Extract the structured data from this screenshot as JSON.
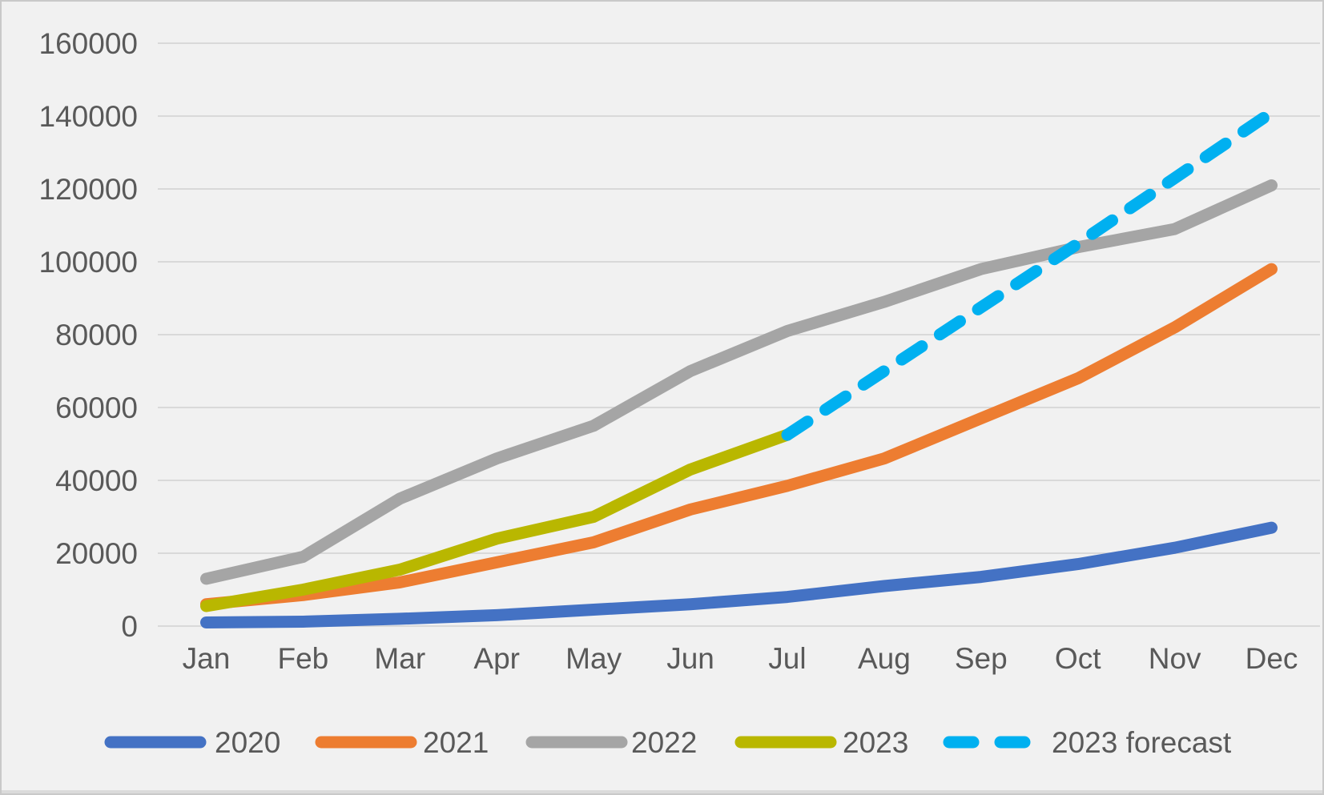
{
  "ui": {
    "background_color": "#f1f1f1",
    "frame_border_color": "#c9c9c9",
    "bottom_strip_color": "#dbdbdb",
    "gridline_color": "#d9d9d9",
    "axis_text_color": "#595959"
  },
  "chart_data": {
    "type": "line",
    "title": "",
    "xlabel": "",
    "ylabel": "",
    "grid": true,
    "legend_position": "bottom",
    "categories": [
      "Jan",
      "Feb",
      "Mar",
      "Apr",
      "May",
      "Jun",
      "Jul",
      "Aug",
      "Sep",
      "Oct",
      "Nov",
      "Dec"
    ],
    "y_axis": {
      "min": 0,
      "max": 160000,
      "step": 20000,
      "tick_labels": [
        "0",
        "20000",
        "40000",
        "60000",
        "80000",
        "100000",
        "120000",
        "140000",
        "160000"
      ]
    },
    "series": [
      {
        "name": "2020",
        "color": "#4472C4",
        "line_style": "solid",
        "values": [
          1000,
          1200,
          2000,
          3000,
          4500,
          6000,
          8000,
          11000,
          13500,
          17000,
          21500,
          27000
        ]
      },
      {
        "name": "2021",
        "color": "#ED7D31",
        "line_style": "solid",
        "values": [
          6000,
          8500,
          12000,
          17500,
          23000,
          32000,
          38500,
          46000,
          57000,
          68000,
          82000,
          98000
        ]
      },
      {
        "name": "2022",
        "color": "#A5A5A5",
        "line_style": "solid",
        "values": [
          13000,
          19000,
          35000,
          46000,
          55000,
          70000,
          81000,
          89000,
          98000,
          104000,
          109000,
          121000
        ]
      },
      {
        "name": "2023",
        "color": "#B9B700",
        "line_style": "solid",
        "values": [
          5500,
          10000,
          15500,
          24000,
          30000,
          43000,
          52500,
          null,
          null,
          null,
          null,
          null
        ]
      },
      {
        "name": "2023 forecast",
        "color": "#00B0F0",
        "line_style": "dashed",
        "values": [
          null,
          null,
          null,
          null,
          null,
          null,
          52500,
          70000,
          87500,
          105000,
          123000,
          141000
        ]
      }
    ]
  }
}
